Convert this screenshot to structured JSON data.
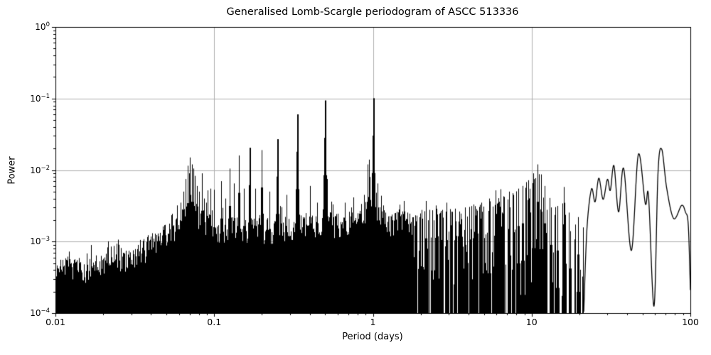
{
  "chart_data": {
    "type": "line",
    "title": "Generalised Lomb-Scargle periodogram of ASCC 513336",
    "xlabel": "Period (days)",
    "ylabel": "Power",
    "xscale": "log",
    "yscale": "log",
    "xlim": [
      0.01,
      100
    ],
    "ylim": [
      0.0001,
      1.0
    ],
    "grid": true,
    "legend": null,
    "x_tick_labels": [
      "0.01",
      "0.1",
      "1",
      "10",
      "100"
    ],
    "x_tick_values": [
      0.01,
      0.1,
      1,
      10,
      100
    ],
    "y_tick_exponents": [
      0,
      -1,
      -2,
      -3,
      -4
    ],
    "colors": {
      "line": "#000000",
      "grid": "#b0b0b0",
      "spine": "#000000",
      "background": "#ffffff",
      "text": "#000000"
    },
    "noise_model": {
      "seed": 1337,
      "dense_top_spread": 0.38,
      "dense_boost_prob": 0.07,
      "dense_boost": 0.15,
      "spike_spread": 1.0,
      "gap_base": 0.06,
      "gap_slope": 0.45
    },
    "regions": {
      "dense_max_period": 1.8,
      "spiky_max_period": 21.2,
      "tail_min_period": 21.3
    },
    "noise_envelope": [
      [
        0.01,
        0.00065
      ],
      [
        0.015,
        0.0006
      ],
      [
        0.02,
        0.00075
      ],
      [
        0.023,
        0.00105
      ],
      [
        0.027,
        0.00085
      ],
      [
        0.032,
        0.001
      ],
      [
        0.04,
        0.0013
      ],
      [
        0.05,
        0.0018
      ],
      [
        0.06,
        0.0027
      ],
      [
        0.068,
        0.0038
      ],
      [
        0.08,
        0.0033
      ],
      [
        0.09,
        0.0025
      ],
      [
        0.11,
        0.0021
      ],
      [
        0.14,
        0.0024
      ],
      [
        0.18,
        0.0021
      ],
      [
        0.25,
        0.0022
      ],
      [
        0.35,
        0.0024
      ],
      [
        0.48,
        0.0029
      ],
      [
        0.6,
        0.0025
      ],
      [
        0.8,
        0.0032
      ],
      [
        0.95,
        0.0048
      ],
      [
        1.0,
        0.0052
      ],
      [
        1.1,
        0.0038
      ],
      [
        1.3,
        0.0026
      ],
      [
        1.8,
        0.0027
      ],
      [
        2.5,
        0.0029
      ],
      [
        3.5,
        0.0029
      ],
      [
        5.0,
        0.0034
      ],
      [
        6.5,
        0.0042
      ],
      [
        8.0,
        0.005
      ],
      [
        10.0,
        0.008
      ],
      [
        11.0,
        0.01
      ],
      [
        12.0,
        0.006
      ],
      [
        14.0,
        0.003
      ],
      [
        16.0,
        0.004
      ],
      [
        18.0,
        0.002
      ],
      [
        21.0,
        0.0018
      ]
    ],
    "major_peaks": [
      {
        "period": 1.0,
        "power": 0.101
      },
      {
        "period": 0.5,
        "power": 0.094
      },
      {
        "period": 0.3333,
        "power": 0.06
      },
      {
        "period": 0.25,
        "power": 0.027
      },
      {
        "period": 0.2,
        "power": 0.019
      },
      {
        "period": 0.1667,
        "power": 0.0205
      },
      {
        "period": 0.1429,
        "power": 0.016
      },
      {
        "period": 0.125,
        "power": 0.0105
      },
      {
        "period": 0.0705,
        "power": 0.015
      },
      {
        "period": 10.9,
        "power": 0.012
      }
    ],
    "minor_peaks": [
      [
        0.0617,
        0.0035
      ],
      [
        0.0638,
        0.005
      ],
      [
        0.0658,
        0.0075
      ],
      [
        0.0678,
        0.0115
      ],
      [
        0.0692,
        0.009
      ],
      [
        0.0722,
        0.012
      ],
      [
        0.0739,
        0.0105
      ],
      [
        0.0758,
        0.0083
      ],
      [
        0.0782,
        0.006
      ],
      [
        0.0806,
        0.005
      ],
      [
        0.0833,
        0.009
      ],
      [
        0.086,
        0.004
      ],
      [
        0.0887,
        0.0035
      ],
      [
        0.0909,
        0.0052
      ],
      [
        0.0943,
        0.0055
      ],
      [
        0.1,
        0.0053
      ],
      [
        0.1111,
        0.007
      ],
      [
        0.118,
        0.004
      ],
      [
        0.133,
        0.0065
      ],
      [
        0.154,
        0.0055
      ],
      [
        0.182,
        0.0055
      ],
      [
        0.222,
        0.005
      ],
      [
        0.286,
        0.0045
      ],
      [
        0.4,
        0.006
      ],
      [
        0.444,
        0.0035
      ],
      [
        0.487,
        0.006
      ],
      [
        0.515,
        0.0075
      ],
      [
        0.667,
        0.0035
      ],
      [
        0.73,
        0.003
      ],
      [
        0.875,
        0.0045
      ],
      [
        0.93,
        0.012
      ],
      [
        0.945,
        0.014
      ],
      [
        0.955,
        0.008
      ],
      [
        1.065,
        0.0065
      ],
      [
        1.13,
        0.004
      ],
      [
        2.15,
        0.0037
      ],
      [
        2.5,
        0.0032
      ],
      [
        2.9,
        0.0035
      ],
      [
        3.3,
        0.0028
      ],
      [
        3.8,
        0.003
      ],
      [
        4.3,
        0.0033
      ],
      [
        4.8,
        0.0035
      ],
      [
        5.4,
        0.004
      ],
      [
        5.9,
        0.0052
      ],
      [
        6.4,
        0.0054
      ],
      [
        7.2,
        0.005
      ],
      [
        7.7,
        0.0045
      ],
      [
        8.2,
        0.0055
      ],
      [
        8.8,
        0.006
      ],
      [
        9.5,
        0.0072
      ],
      [
        10.2,
        0.009
      ],
      [
        11.5,
        0.0087
      ],
      [
        12.1,
        0.006
      ],
      [
        13.2,
        0.003
      ],
      [
        14.5,
        0.0025
      ],
      [
        16.0,
        0.0058
      ],
      [
        17.5,
        0.0014
      ],
      [
        19.5,
        0.0022
      ]
    ],
    "smooth_tail": [
      [
        21.3,
        0.000105
      ],
      [
        22.3,
        0.0015
      ],
      [
        23.8,
        0.0054
      ],
      [
        25.1,
        0.0036
      ],
      [
        26.5,
        0.0077
      ],
      [
        28.2,
        0.0039
      ],
      [
        30.0,
        0.0074
      ],
      [
        31.3,
        0.0052
      ],
      [
        33.0,
        0.0115
      ],
      [
        35.3,
        0.0026
      ],
      [
        38.0,
        0.0105
      ],
      [
        42.5,
        0.00075
      ],
      [
        47.0,
        0.0165
      ],
      [
        52.0,
        0.0034
      ],
      [
        54.5,
        0.0043
      ],
      [
        59.0,
        0.000125
      ],
      [
        62.5,
        0.009
      ],
      [
        66.0,
        0.0195
      ],
      [
        71.0,
        0.0055
      ],
      [
        78.5,
        0.0021
      ],
      [
        88.0,
        0.0032
      ],
      [
        93.0,
        0.0026
      ],
      [
        97.0,
        0.0017
      ],
      [
        100.0,
        0.00021
      ]
    ]
  }
}
